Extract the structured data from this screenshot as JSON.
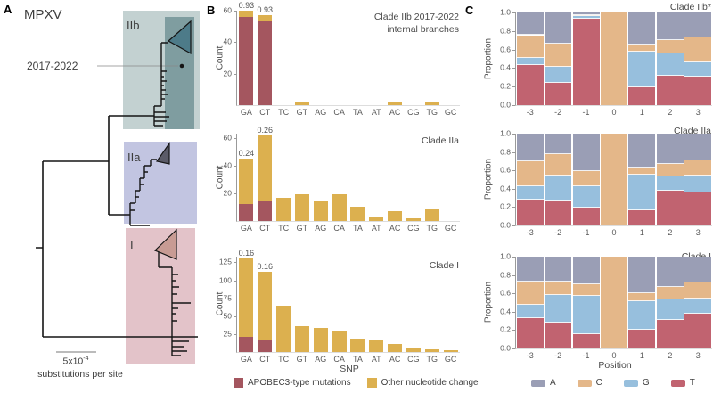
{
  "figure": {
    "panel_a": {
      "label": "A",
      "title": "MPXV",
      "annotation": "2017-2022",
      "clade_labels": {
        "iib": "IIb",
        "iia": "IIa",
        "i": "I"
      },
      "scale_value": "5x10",
      "scale_exponent": "-4",
      "scale_caption": "substitutions per site",
      "colors": {
        "iib_box": "#c3d1d1",
        "iib_inner": "#7f9da0",
        "iib_triangle": "#4d7b89",
        "iia_box": "#c2c5e1",
        "iia_triangle": "#5b5b68",
        "i_box": "#e3c3c9",
        "i_triangle": "#c89b94",
        "branch": "#151515"
      }
    },
    "panel_b": {
      "label": "B",
      "ylabel": "Count",
      "xlabel": "SNP",
      "legend": [
        {
          "label": "APOBEC3-type mutations",
          "color": "#a4565f"
        },
        {
          "label": "Other nucleotide change",
          "color": "#dcb04f"
        }
      ]
    },
    "panel_c": {
      "label": "C",
      "ylabel": "Proportion",
      "xlabel": "Position",
      "legend": [
        {
          "label": "A",
          "color": "#9a9eb5"
        },
        {
          "label": "C",
          "color": "#e4b789"
        },
        {
          "label": "G",
          "color": "#97bfdd"
        },
        {
          "label": "T",
          "color": "#c16370"
        }
      ]
    }
  },
  "chart_data": [
    {
      "id": "b_iib",
      "type": "bar",
      "stacked": true,
      "title": "Clade IIb 2017-2022\ninternal branches",
      "ylabel": "Count",
      "xlabel": "",
      "categories": [
        "GA",
        "CT",
        "TC",
        "GT",
        "AG",
        "CA",
        "TA",
        "AT",
        "AC",
        "CG",
        "TG",
        "GC"
      ],
      "series": [
        {
          "name": "APOBEC3-type mutations",
          "color": "#a4565f",
          "values": [
            56,
            53,
            0,
            0,
            0,
            0,
            0,
            0,
            0,
            0,
            0,
            0
          ]
        },
        {
          "name": "Other nucleotide change",
          "color": "#dcb04f",
          "values": [
            4,
            4,
            0,
            1.5,
            0,
            0,
            0,
            0,
            1.5,
            0,
            1.5,
            0
          ]
        }
      ],
      "annotations": {
        "GA": "0.93",
        "CT": "0.93"
      },
      "ylim": [
        0,
        60
      ],
      "yticks": [
        20,
        40,
        60
      ],
      "ytick_decimals": 0
    },
    {
      "id": "b_iia",
      "type": "bar",
      "stacked": true,
      "title": "Clade IIa",
      "ylabel": "Count",
      "xlabel": "",
      "categories": [
        "GA",
        "CT",
        "TC",
        "GT",
        "AG",
        "CA",
        "TA",
        "AT",
        "AC",
        "CG",
        "TG",
        "GC"
      ],
      "series": [
        {
          "name": "APOBEC3-type mutations",
          "color": "#a4565f",
          "values": [
            12,
            15,
            0,
            0,
            0,
            0,
            0,
            0,
            0,
            0,
            0,
            0
          ]
        },
        {
          "name": "Other nucleotide change",
          "color": "#dcb04f",
          "values": [
            33,
            47,
            17,
            19,
            15,
            19,
            10,
            3,
            7,
            2,
            9,
            0
          ]
        }
      ],
      "annotations": {
        "GA": "0.24",
        "CT": "0.26"
      },
      "ylim": [
        0,
        63
      ],
      "yticks": [
        20,
        40,
        60
      ],
      "ytick_decimals": 0
    },
    {
      "id": "b_i",
      "type": "bar",
      "stacked": true,
      "title": "Clade I",
      "ylabel": "Count",
      "xlabel": "SNP",
      "categories": [
        "GA",
        "CT",
        "TC",
        "GT",
        "AG",
        "CA",
        "TA",
        "AT",
        "AC",
        "CG",
        "TG",
        "GC"
      ],
      "series": [
        {
          "name": "APOBEC3-type mutations",
          "color": "#a4565f",
          "values": [
            21,
            18,
            0,
            0,
            0,
            0,
            0,
            0,
            0,
            0,
            0,
            0
          ]
        },
        {
          "name": "Other nucleotide change",
          "color": "#dcb04f",
          "values": [
            109,
            94,
            65,
            36,
            33,
            30,
            19,
            16,
            11,
            5,
            4,
            3
          ]
        }
      ],
      "annotations": {
        "GA": "0.16",
        "CT": "0.16"
      },
      "ylim": [
        0,
        133
      ],
      "yticks": [
        25,
        50,
        75,
        100,
        125
      ],
      "ytick_decimals": 0
    },
    {
      "id": "c_iib",
      "type": "bar",
      "stacked": true,
      "gaps": true,
      "title": "Clade IIb*",
      "ylabel": "Proportion",
      "xlabel": "",
      "categories": [
        "-3",
        "-2",
        "-1",
        "0",
        "1",
        "2",
        "3"
      ],
      "series": [
        {
          "name": "T",
          "color": "#c16370",
          "values": [
            0.435,
            0.24,
            0.93,
            0,
            0.19,
            0.32,
            0.31
          ]
        },
        {
          "name": "G",
          "color": "#97bfdd",
          "values": [
            0.075,
            0.17,
            0.03,
            0,
            0.39,
            0.24,
            0.15
          ]
        },
        {
          "name": "C",
          "color": "#e4b789",
          "values": [
            0.245,
            0.255,
            0.01,
            1,
            0.075,
            0.14,
            0.27
          ]
        },
        {
          "name": "A",
          "color": "#9a9eb5",
          "values": [
            0.245,
            0.335,
            0.03,
            0,
            0.345,
            0.3,
            0.27
          ]
        }
      ],
      "ylim": [
        0,
        1
      ],
      "yticks": [
        0,
        0.2,
        0.4,
        0.6,
        0.8,
        1.0
      ],
      "ytick_decimals": 1
    },
    {
      "id": "c_iia",
      "type": "bar",
      "stacked": true,
      "gaps": true,
      "title": "Clade IIa",
      "ylabel": "Proportion",
      "xlabel": "",
      "categories": [
        "-3",
        "-2",
        "-1",
        "0",
        "1",
        "2",
        "3"
      ],
      "series": [
        {
          "name": "T",
          "color": "#c16370",
          "values": [
            0.28,
            0.27,
            0.19,
            0,
            0.17,
            0.38,
            0.36
          ]
        },
        {
          "name": "G",
          "color": "#97bfdd",
          "values": [
            0.15,
            0.27,
            0.24,
            0,
            0.38,
            0.15,
            0.18
          ]
        },
        {
          "name": "C",
          "color": "#e4b789",
          "values": [
            0.27,
            0.24,
            0.16,
            1,
            0.08,
            0.14,
            0.17
          ]
        },
        {
          "name": "A",
          "color": "#9a9eb5",
          "values": [
            0.3,
            0.22,
            0.41,
            0,
            0.37,
            0.33,
            0.29
          ]
        }
      ],
      "ylim": [
        0,
        1
      ],
      "yticks": [
        0,
        0.2,
        0.4,
        0.6,
        0.8,
        1.0
      ],
      "ytick_decimals": 1
    },
    {
      "id": "c_i",
      "type": "bar",
      "stacked": true,
      "gaps": true,
      "title": "Clade I",
      "ylabel": "Proportion",
      "xlabel": "Position",
      "categories": [
        "-3",
        "-2",
        "-1",
        "0",
        "1",
        "2",
        "3"
      ],
      "series": [
        {
          "name": "T",
          "color": "#c16370",
          "values": [
            0.33,
            0.28,
            0.16,
            0,
            0.2,
            0.31,
            0.38
          ]
        },
        {
          "name": "G",
          "color": "#97bfdd",
          "values": [
            0.15,
            0.3,
            0.41,
            0,
            0.31,
            0.22,
            0.16
          ]
        },
        {
          "name": "C",
          "color": "#e4b789",
          "values": [
            0.25,
            0.15,
            0.13,
            1,
            0.09,
            0.14,
            0.18
          ]
        },
        {
          "name": "A",
          "color": "#9a9eb5",
          "values": [
            0.27,
            0.27,
            0.3,
            0,
            0.4,
            0.33,
            0.28
          ]
        }
      ],
      "ylim": [
        0,
        1
      ],
      "yticks": [
        0,
        0.2,
        0.4,
        0.6,
        0.8,
        1.0
      ],
      "ytick_decimals": 1
    }
  ]
}
